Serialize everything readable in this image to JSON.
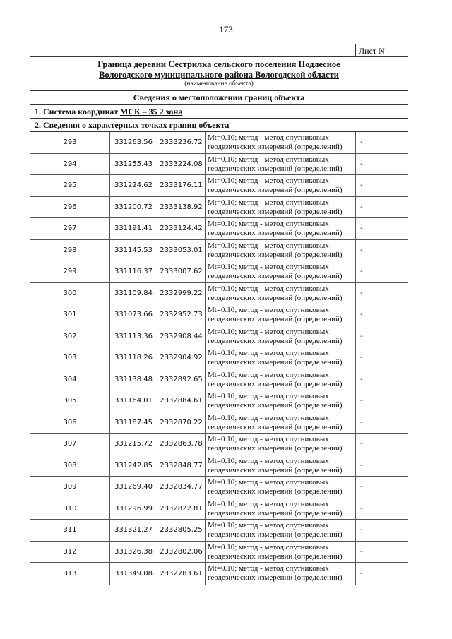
{
  "page_number": "173",
  "sheet_label": "Лист N",
  "title": {
    "line1": "Граница деревни Сестрилка сельского поселения Подлесное",
    "line2": "Вологодского муниципального района Вологодской области",
    "caption": "(наименование объекта)"
  },
  "section": "Сведения о местоположении границ объекта",
  "coord_system": {
    "prefix": "1. Система координат ",
    "value": "МСК – 35 2 зона"
  },
  "points_heading": "2. Сведения о характерных точках границ объекта",
  "method_line1": "Mt=0.10; метод - метод спутниковых",
  "method_line2": "геодезических измерений (определений)",
  "rows": [
    {
      "n": "293",
      "x": "331263.56",
      "y": "2333236.72",
      "extra": "-"
    },
    {
      "n": "294",
      "x": "331255.43",
      "y": "2333224.08",
      "extra": "-"
    },
    {
      "n": "295",
      "x": "331224.62",
      "y": "2333176.11",
      "extra": "-"
    },
    {
      "n": "296",
      "x": "331200.72",
      "y": "2333138.92",
      "extra": "-"
    },
    {
      "n": "297",
      "x": "331191.41",
      "y": "2333124.42",
      "extra": "-"
    },
    {
      "n": "298",
      "x": "331145.53",
      "y": "2333053.01",
      "extra": "-"
    },
    {
      "n": "299",
      "x": "331116.37",
      "y": "2333007.62",
      "extra": "-"
    },
    {
      "n": "300",
      "x": "331109.84",
      "y": "2332999.22",
      "extra": "-"
    },
    {
      "n": "301",
      "x": "331073.66",
      "y": "2332952.73",
      "extra": "-"
    },
    {
      "n": "302",
      "x": "331113.36",
      "y": "2332908.44",
      "extra": "-"
    },
    {
      "n": "303",
      "x": "331118.26",
      "y": "2332904.92",
      "extra": "-"
    },
    {
      "n": "304",
      "x": "331138.48",
      "y": "2332892.65",
      "extra": "-"
    },
    {
      "n": "305",
      "x": "331164.01",
      "y": "2332884.61",
      "extra": "-"
    },
    {
      "n": "306",
      "x": "331187.45",
      "y": "2332870.22",
      "extra": "-"
    },
    {
      "n": "307",
      "x": "331215.72",
      "y": "2332863.78",
      "extra": "-"
    },
    {
      "n": "308",
      "x": "331242.85",
      "y": "2332848.77",
      "extra": "-"
    },
    {
      "n": "309",
      "x": "331269.40",
      "y": "2332834.77",
      "extra": "-"
    },
    {
      "n": "310",
      "x": "331296.99",
      "y": "2332822.81",
      "extra": "-"
    },
    {
      "n": "311",
      "x": "331321.27",
      "y": "2332805.25",
      "extra": "-"
    },
    {
      "n": "312",
      "x": "331326.38",
      "y": "2332802.06",
      "extra": "-"
    },
    {
      "n": "313",
      "x": "331349.08",
      "y": "2332783.61",
      "extra": "-"
    }
  ]
}
